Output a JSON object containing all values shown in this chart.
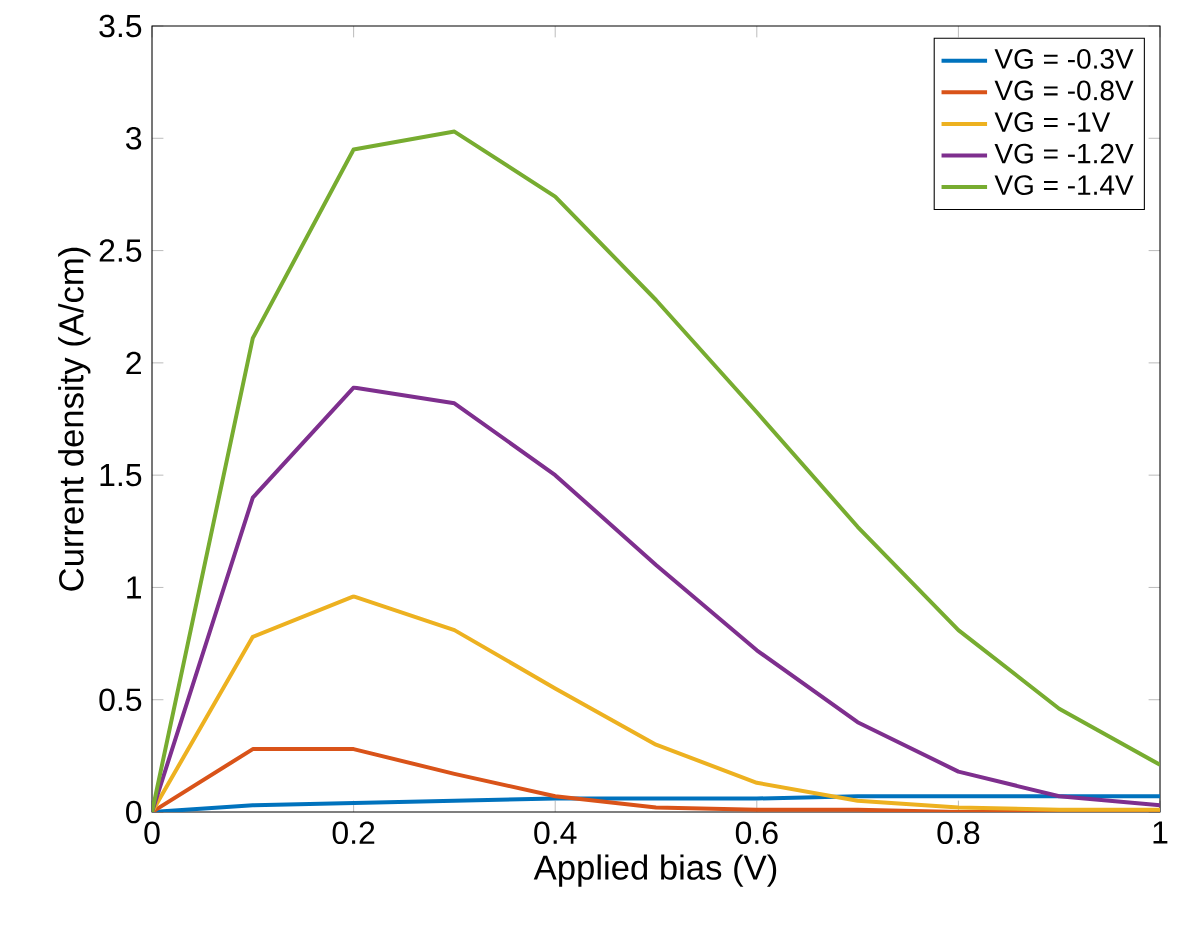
{
  "chart_data": {
    "type": "line",
    "xlabel": "Applied bias (V)",
    "ylabel": "Current density (A/cm)",
    "x": [
      0,
      0.1,
      0.2,
      0.3,
      0.4,
      0.5,
      0.6,
      0.7,
      0.8,
      0.9,
      1.0
    ],
    "series": [
      {
        "name": "VG = -0.3V",
        "color": "#0072bd",
        "values": [
          0,
          0.03,
          0.04,
          0.05,
          0.06,
          0.06,
          0.06,
          0.07,
          0.07,
          0.07,
          0.07
        ]
      },
      {
        "name": "VG = -0.8V",
        "color": "#d95319",
        "values": [
          0,
          0.28,
          0.28,
          0.17,
          0.07,
          0.02,
          0.01,
          0.01,
          0,
          0,
          0
        ]
      },
      {
        "name": "VG = -1V",
        "color": "#edb120",
        "values": [
          0,
          0.78,
          0.96,
          0.81,
          0.55,
          0.3,
          0.13,
          0.05,
          0.02,
          0.01,
          0.01
        ]
      },
      {
        "name": "VG = -1.2V",
        "color": "#7e2f8e",
        "values": [
          0,
          1.4,
          1.89,
          1.82,
          1.5,
          1.1,
          0.72,
          0.4,
          0.18,
          0.07,
          0.03
        ]
      },
      {
        "name": "VG = -1.4V",
        "color": "#77ac30",
        "values": [
          0,
          2.11,
          2.95,
          3.03,
          2.74,
          2.28,
          1.78,
          1.27,
          0.81,
          0.46,
          0.21
        ]
      }
    ],
    "xlim": [
      0,
      1
    ],
    "ylim": [
      0,
      3.5
    ],
    "xticks": [
      0,
      0.2,
      0.4,
      0.6,
      0.8,
      1
    ],
    "yticks": [
      0,
      0.5,
      1,
      1.5,
      2,
      2.5,
      3,
      3.5
    ],
    "grid": false,
    "legend": "top right",
    "marker": "none",
    "line_style": "solid"
  }
}
